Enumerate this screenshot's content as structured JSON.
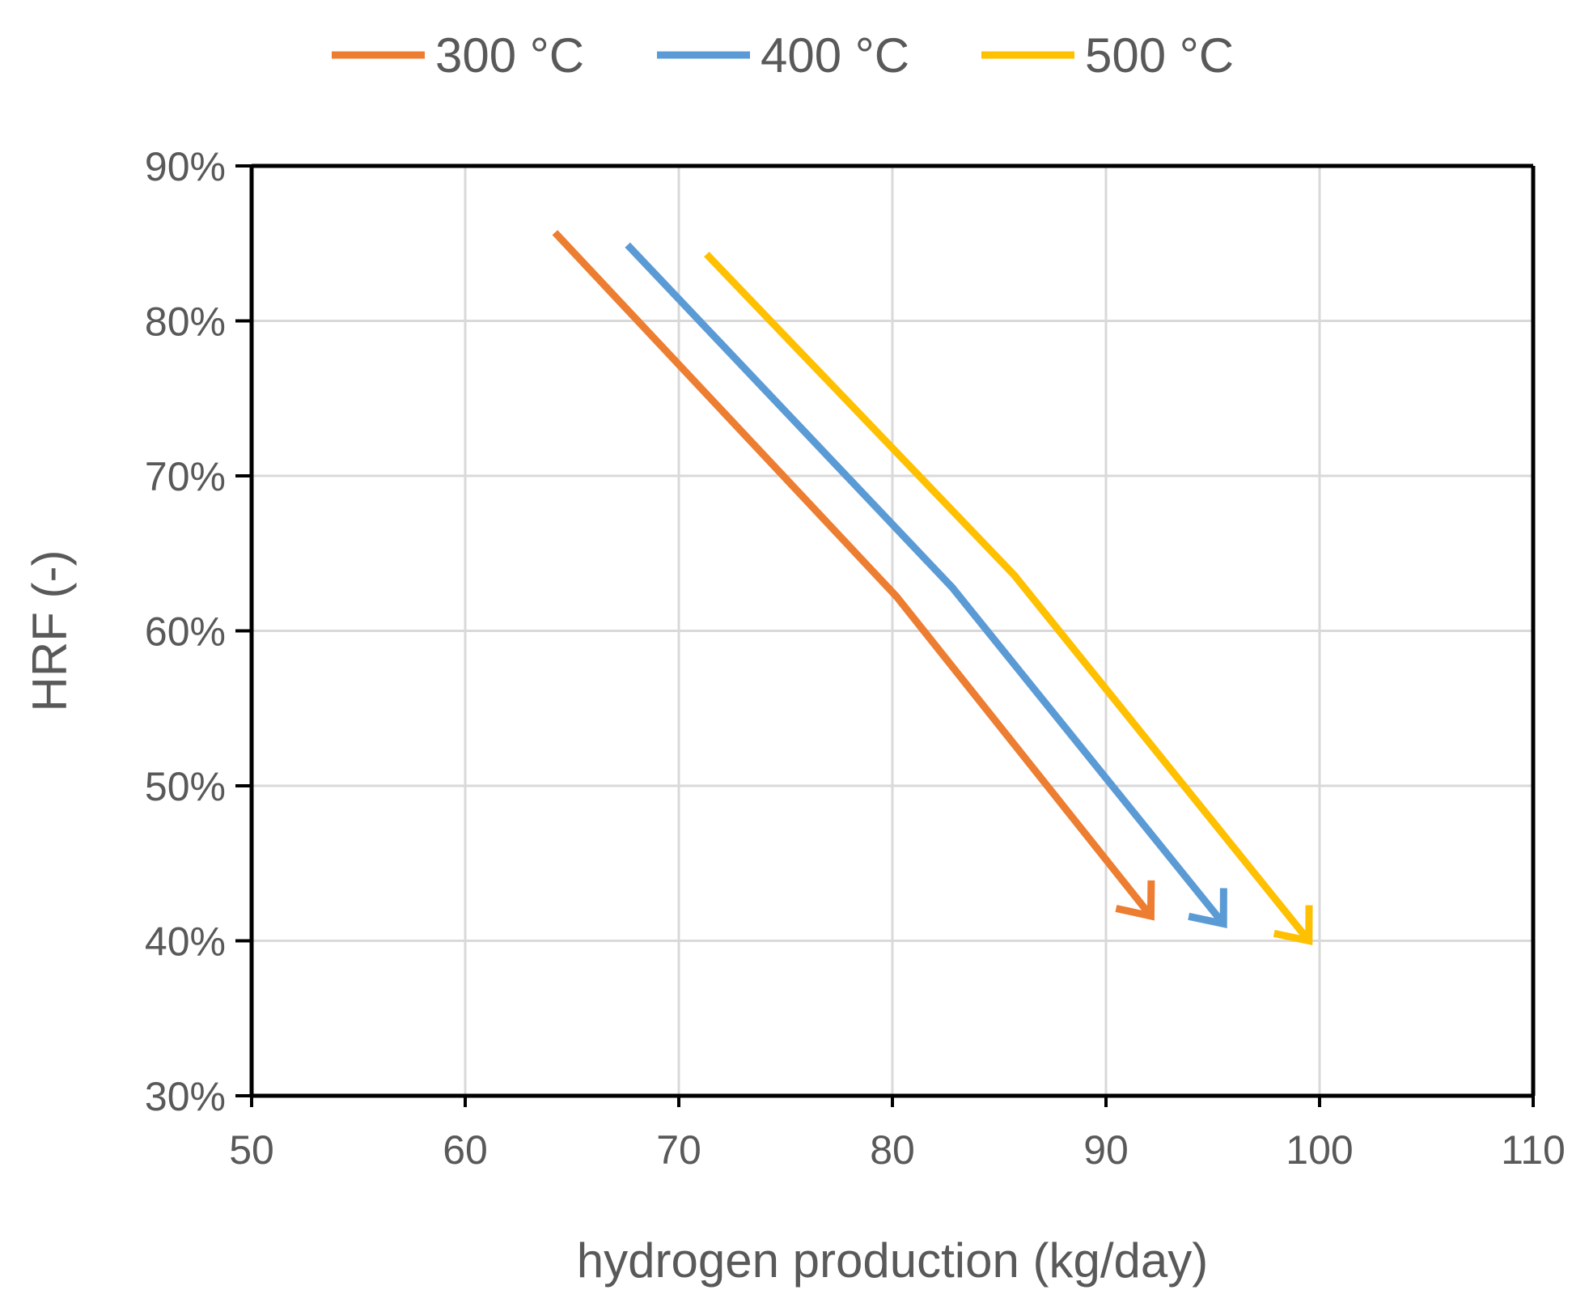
{
  "chart_data": {
    "type": "line",
    "title": "",
    "xlabel": "hydrogen production (kg/day)",
    "ylabel": "HRF (-)",
    "xlim": [
      50,
      110
    ],
    "ylim": [
      0.3,
      0.9
    ],
    "xticks": [
      50,
      60,
      70,
      80,
      90,
      100,
      110
    ],
    "xtick_labels": [
      "50",
      "60",
      "70",
      "80",
      "90",
      "100",
      "110"
    ],
    "yticks": [
      0.3,
      0.4,
      0.5,
      0.6,
      0.7,
      0.8,
      0.9
    ],
    "ytick_labels": [
      "30%",
      "40%",
      "50%",
      "60%",
      "70%",
      "80%",
      "90%"
    ],
    "grid": true,
    "legend_position": "top",
    "line_end_marker": "arrow",
    "series": [
      {
        "name": "300 °C",
        "color": "#ED7D31",
        "x": [
          64.2,
          80.2,
          92.1
        ],
        "y": [
          0.857,
          0.622,
          0.416
        ]
      },
      {
        "name": "400 °C",
        "color": "#5B9BD5",
        "x": [
          67.6,
          82.8,
          95.5
        ],
        "y": [
          0.849,
          0.628,
          0.411
        ]
      },
      {
        "name": "500 °C",
        "color": "#FFC000",
        "x": [
          71.3,
          85.7,
          99.5
        ],
        "y": [
          0.843,
          0.636,
          0.4
        ]
      }
    ]
  }
}
